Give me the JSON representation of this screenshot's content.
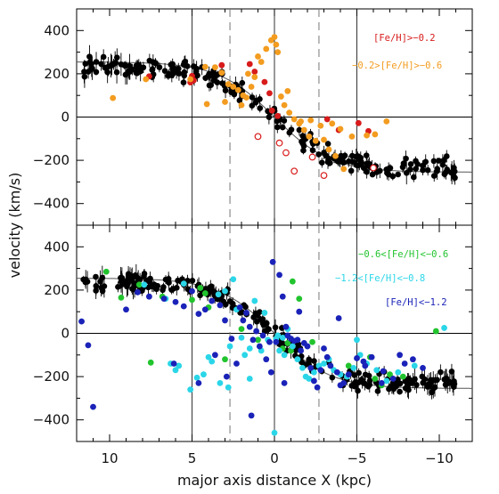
{
  "chart_data": [
    {
      "type": "scatter",
      "panel": "top",
      "xlabel": "major axis distance X (kpc)",
      "ylabel": "velocity (km/s)",
      "xlim": [
        12,
        -12
      ],
      "ylim": [
        -500,
        500
      ],
      "x_ticks": [
        10,
        5,
        0,
        -5,
        -10
      ],
      "x_tick_labels": [
        "10",
        "5",
        "0",
        "−5",
        "−10"
      ],
      "y_ticks": [
        400,
        200,
        0,
        -200,
        -400
      ],
      "y_tick_labels": [
        "400",
        "200",
        "0",
        "−200",
        "−400"
      ],
      "vertical_solid_lines": [
        5,
        0,
        -5
      ],
      "vertical_dashed_lines": [
        2.7,
        -2.7
      ],
      "horizontal_line": 0,
      "model_curve": {
        "vmax": 255,
        "scale_kpc": 3.4
      },
      "legend_position": "top-right",
      "legend": [
        {
          "label": "[Fe/H]>−0.2",
          "color": "#d81b1b"
        },
        {
          "label": "−0.2>[Fe/H]>−0.6",
          "color": "#f39c1f"
        }
      ],
      "series": [
        {
          "name": "[Fe/H]>−0.2",
          "color": "#d81b1b",
          "points": [
            [
              7.6,
              188
            ],
            [
              5.1,
              160
            ],
            [
              5.0,
              190
            ],
            [
              4.9,
              170
            ],
            [
              3.2,
              240
            ],
            [
              1.5,
              245
            ],
            [
              1.2,
              210
            ],
            [
              0.6,
              162
            ],
            [
              0.3,
              110
            ],
            [
              0.15,
              30
            ],
            [
              -0.2,
              5
            ],
            [
              -3.2,
              -10
            ],
            [
              -3.9,
              -60
            ],
            [
              -5.1,
              -28
            ],
            [
              -5.7,
              -65
            ]
          ],
          "hollow_points": [
            [
              1.0,
              -90
            ],
            [
              -0.3,
              -120
            ],
            [
              -0.7,
              -165
            ],
            [
              -1.2,
              -250
            ],
            [
              -2.3,
              -185
            ],
            [
              -3.0,
              -270
            ],
            [
              -6.0,
              -235
            ]
          ]
        },
        {
          "name": "−0.2>[Fe/H]>−0.6",
          "color": "#f39c1f",
          "points": [
            [
              9.8,
              88
            ],
            [
              7.8,
              175
            ],
            [
              5.1,
              175
            ],
            [
              4.2,
              232
            ],
            [
              3.6,
              230
            ],
            [
              3.2,
              205
            ],
            [
              2.8,
              152
            ],
            [
              2.5,
              140
            ],
            [
              2.2,
              125
            ],
            [
              1.9,
              100
            ],
            [
              1.7,
              90
            ],
            [
              1.4,
              140
            ],
            [
              1.2,
              185
            ],
            [
              1.0,
              280
            ],
            [
              0.8,
              255
            ],
            [
              0.5,
              315
            ],
            [
              0.2,
              355
            ],
            [
              0.0,
              370
            ],
            [
              -0.1,
              335
            ],
            [
              -0.2,
              300
            ],
            [
              -0.4,
              95
            ],
            [
              -0.6,
              55
            ],
            [
              -0.9,
              20
            ],
            [
              -1.2,
              -10
            ],
            [
              -1.5,
              -30
            ],
            [
              -1.8,
              -60
            ],
            [
              -2.1,
              -90
            ],
            [
              -2.5,
              -110
            ],
            [
              -3.0,
              -105
            ],
            [
              -3.3,
              -150
            ],
            [
              -3.7,
              -180
            ],
            [
              -4.2,
              -240
            ],
            [
              -4.7,
              -90
            ],
            [
              -5.6,
              -85
            ],
            [
              -6.1,
              -80
            ],
            [
              -6.8,
              -20
            ],
            [
              -3.5,
              -30
            ],
            [
              -2.8,
              -40
            ],
            [
              -4.0,
              -55
            ],
            [
              1.6,
              200
            ],
            [
              2.0,
              55
            ],
            [
              3.0,
              70
            ],
            [
              4.1,
              60
            ],
            [
              -0.8,
              120
            ],
            [
              -1.6,
              -20
            ],
            [
              -2.2,
              -15
            ]
          ]
        },
        {
          "name": "black",
          "color": "#000000",
          "samples": 230,
          "xmin": -11,
          "xmax": 11.6,
          "scatter": 28
        }
      ]
    },
    {
      "type": "scatter",
      "panel": "bottom",
      "xlabel": "major axis distance X (kpc)",
      "ylabel": "velocity (km/s)",
      "xlim": [
        12,
        -12
      ],
      "ylim": [
        -500,
        500
      ],
      "x_ticks": [
        10,
        5,
        0,
        -5,
        -10
      ],
      "x_tick_labels": [
        "10",
        "5",
        "0",
        "−5",
        "−10"
      ],
      "y_ticks": [
        400,
        200,
        0,
        -200,
        -400
      ],
      "y_tick_labels": [
        "400",
        "200",
        "0",
        "−200",
        "−400"
      ],
      "vertical_solid_lines": [
        5,
        0,
        -5
      ],
      "vertical_dashed_lines": [
        2.7,
        -2.7
      ],
      "horizontal_line": 0,
      "model_curve": {
        "vmax": 255,
        "scale_kpc": 3.4
      },
      "legend_position": "top-right",
      "legend": [
        {
          "label": "−0.6<[Fe/H]<−0.6",
          "color": "#22c42e"
        },
        {
          "label": "−1.2<[Fe/H]<−0.8",
          "color": "#2ad6e8"
        },
        {
          "label": "[Fe/H]<−1.2",
          "color": "#1a22b8"
        }
      ],
      "series": [
        {
          "name": "−0.6<[Fe/H]<−0.6",
          "color": "#22c42e",
          "points": [
            [
              10.2,
              285
            ],
            [
              9.3,
              165
            ],
            [
              8.2,
              225
            ],
            [
              6.8,
              170
            ],
            [
              5.0,
              155
            ],
            [
              4.5,
              210
            ],
            [
              4.0,
              120
            ],
            [
              4.2,
              185
            ],
            [
              3.0,
              -120
            ],
            [
              2.0,
              20
            ],
            [
              1.0,
              -30
            ],
            [
              -0.5,
              -70
            ],
            [
              -1.0,
              -80
            ],
            [
              -0.8,
              -45
            ],
            [
              -1.1,
              240
            ],
            [
              -1.5,
              160
            ],
            [
              -2.3,
              -40
            ],
            [
              -4.5,
              -150
            ],
            [
              -5.8,
              -110
            ],
            [
              -6.1,
              -210
            ],
            [
              -6.5,
              -240
            ],
            [
              -7.0,
              -190
            ],
            [
              -7.8,
              -200
            ],
            [
              -9.8,
              10
            ],
            [
              7.5,
              -135
            ]
          ]
        },
        {
          "name": "−1.2<[Fe/H]<−0.8",
          "color": "#2ad6e8",
          "points": [
            [
              7.9,
              225
            ],
            [
              6.6,
              160
            ],
            [
              6.0,
              -170
            ],
            [
              5.5,
              230
            ],
            [
              5.1,
              -260
            ],
            [
              4.7,
              -205
            ],
            [
              4.3,
              -190
            ],
            [
              4.0,
              -110
            ],
            [
              3.8,
              -130
            ],
            [
              3.4,
              180
            ],
            [
              3.0,
              195
            ],
            [
              2.7,
              -60
            ],
            [
              2.5,
              250
            ],
            [
              2.3,
              110
            ],
            [
              2.0,
              -20
            ],
            [
              1.8,
              -100
            ],
            [
              1.5,
              -70
            ],
            [
              1.2,
              150
            ],
            [
              0.8,
              -80
            ],
            [
              0.6,
              95
            ],
            [
              0.4,
              -30
            ],
            [
              0.0,
              -460
            ],
            [
              -0.1,
              -25
            ],
            [
              -0.2,
              -10
            ],
            [
              -0.5,
              -20
            ],
            [
              -0.8,
              20
            ],
            [
              -1.1,
              -60
            ],
            [
              -1.4,
              -120
            ],
            [
              -1.7,
              -160
            ],
            [
              -1.9,
              -200
            ],
            [
              -2.1,
              -210
            ],
            [
              -2.4,
              -180
            ],
            [
              -2.7,
              -150
            ],
            [
              -3.0,
              -140
            ],
            [
              -3.3,
              -120
            ],
            [
              -3.6,
              -170
            ],
            [
              -4.0,
              -190
            ],
            [
              -4.4,
              -200
            ],
            [
              -5.2,
              -100
            ],
            [
              -5.6,
              -140
            ],
            [
              -6.2,
              -170
            ],
            [
              -6.8,
              -220
            ],
            [
              -7.5,
              -180
            ],
            [
              -8.5,
              -150
            ],
            [
              -10.3,
              25
            ],
            [
              5.8,
              -150
            ],
            [
              6.3,
              -140
            ],
            [
              3.3,
              -230
            ],
            [
              1.5,
              -210
            ],
            [
              2.8,
              -250
            ],
            [
              -0.3,
              -80
            ],
            [
              -0.6,
              -100
            ],
            [
              -4.8,
              -160
            ],
            [
              -5.0,
              -30
            ]
          ]
        },
        {
          "name": "[Fe/H]<−1.2",
          "color": "#1a22b8",
          "points": [
            [
              11.7,
              55
            ],
            [
              11.3,
              -55
            ],
            [
              11.0,
              -340
            ],
            [
              9.0,
              110
            ],
            [
              8.3,
              190
            ],
            [
              7.6,
              170
            ],
            [
              6.7,
              160
            ],
            [
              6.0,
              145
            ],
            [
              5.5,
              125
            ],
            [
              5.0,
              195
            ],
            [
              4.6,
              90
            ],
            [
              4.2,
              110
            ],
            [
              3.8,
              150
            ],
            [
              3.3,
              130
            ],
            [
              3.0,
              60
            ],
            [
              2.6,
              -25
            ],
            [
              2.3,
              -140
            ],
            [
              2.1,
              120
            ],
            [
              1.9,
              60
            ],
            [
              1.7,
              95
            ],
            [
              1.5,
              30
            ],
            [
              1.3,
              -30
            ],
            [
              1.1,
              10
            ],
            [
              0.9,
              -60
            ],
            [
              0.7,
              -10
            ],
            [
              0.5,
              -120
            ],
            [
              0.3,
              -40
            ],
            [
              0.1,
              330
            ],
            [
              -0.1,
              -40
            ],
            [
              -0.3,
              270
            ],
            [
              -0.5,
              170
            ],
            [
              -0.7,
              30
            ],
            [
              -0.8,
              -10
            ],
            [
              -1.0,
              -25
            ],
            [
              -1.2,
              -35
            ],
            [
              -1.5,
              100
            ],
            [
              -1.6,
              -80
            ],
            [
              -1.8,
              -45
            ],
            [
              -2.0,
              -60
            ],
            [
              -2.2,
              -160
            ],
            [
              -2.4,
              -220
            ],
            [
              -2.6,
              -250
            ],
            [
              -2.8,
              -170
            ],
            [
              -3.0,
              -70
            ],
            [
              -3.2,
              -110
            ],
            [
              -3.4,
              -150
            ],
            [
              -3.8,
              -180
            ],
            [
              -4.0,
              -240
            ],
            [
              -4.2,
              -230
            ],
            [
              -4.5,
              -190
            ],
            [
              -5.0,
              -115
            ],
            [
              -5.4,
              -130
            ],
            [
              -5.9,
              -110
            ],
            [
              -6.6,
              -175
            ],
            [
              -7.2,
              -210
            ],
            [
              -7.9,
              -140
            ],
            [
              -8.4,
              -120
            ],
            [
              -9.0,
              -160
            ],
            [
              -3.9,
              70
            ],
            [
              -0.6,
              -230
            ],
            [
              1.4,
              -380
            ],
            [
              2.9,
              -200
            ],
            [
              3.6,
              -100
            ],
            [
              -6.5,
              -230
            ],
            [
              -7.6,
              -100
            ],
            [
              4.6,
              -230
            ],
            [
              0.2,
              -180
            ],
            [
              -1.4,
              -30
            ],
            [
              6.1,
              -140
            ],
            [
              -5.5,
              -150
            ]
          ]
        },
        {
          "name": "black",
          "color": "#000000",
          "samples": 230,
          "xmin": -11,
          "xmax": 11.6,
          "scatter": 28
        }
      ]
    }
  ]
}
